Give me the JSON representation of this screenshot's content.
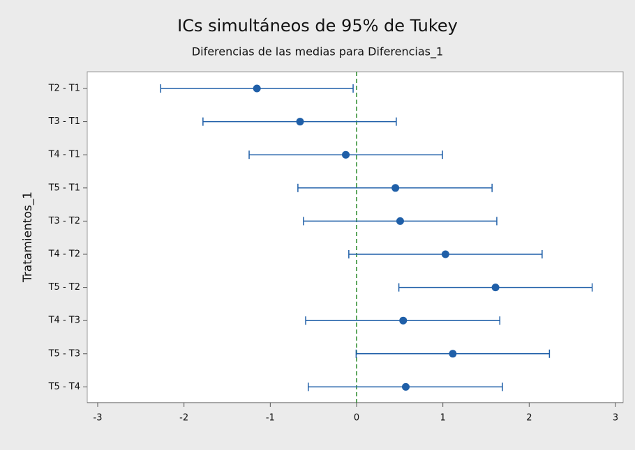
{
  "chart_data": {
    "type": "interval",
    "title": "ICs simultáneos de 95% de Tukey",
    "subtitle": "Diferencias de las medias para Diferencias_1",
    "y_label": "Tratamientos_1",
    "categories": [
      "T2 - T1",
      "T3 - T1",
      "T4 - T1",
      "T5 - T1",
      "T3 - T2",
      "T4 - T2",
      "T5 - T2",
      "T4 - T3",
      "T5 - T3",
      "T5 - T4"
    ],
    "values": [
      -1.155,
      -0.655,
      -0.125,
      0.45,
      0.505,
      1.03,
      1.61,
      0.54,
      1.115,
      0.57
    ],
    "lower": [
      -2.27,
      -1.78,
      -1.245,
      -0.68,
      -0.615,
      -0.09,
      0.49,
      -0.59,
      -0.005,
      -0.56
    ],
    "upper": [
      -0.04,
      0.46,
      0.995,
      1.57,
      1.625,
      2.15,
      2.73,
      1.66,
      2.235,
      1.69
    ],
    "color": "#1f5fa8",
    "reference_line": 0,
    "reference_color": "#2a8a2a",
    "xlim": [
      -3,
      3
    ],
    "xticks": [
      -3,
      -2,
      -1,
      0,
      1,
      2,
      3
    ]
  }
}
